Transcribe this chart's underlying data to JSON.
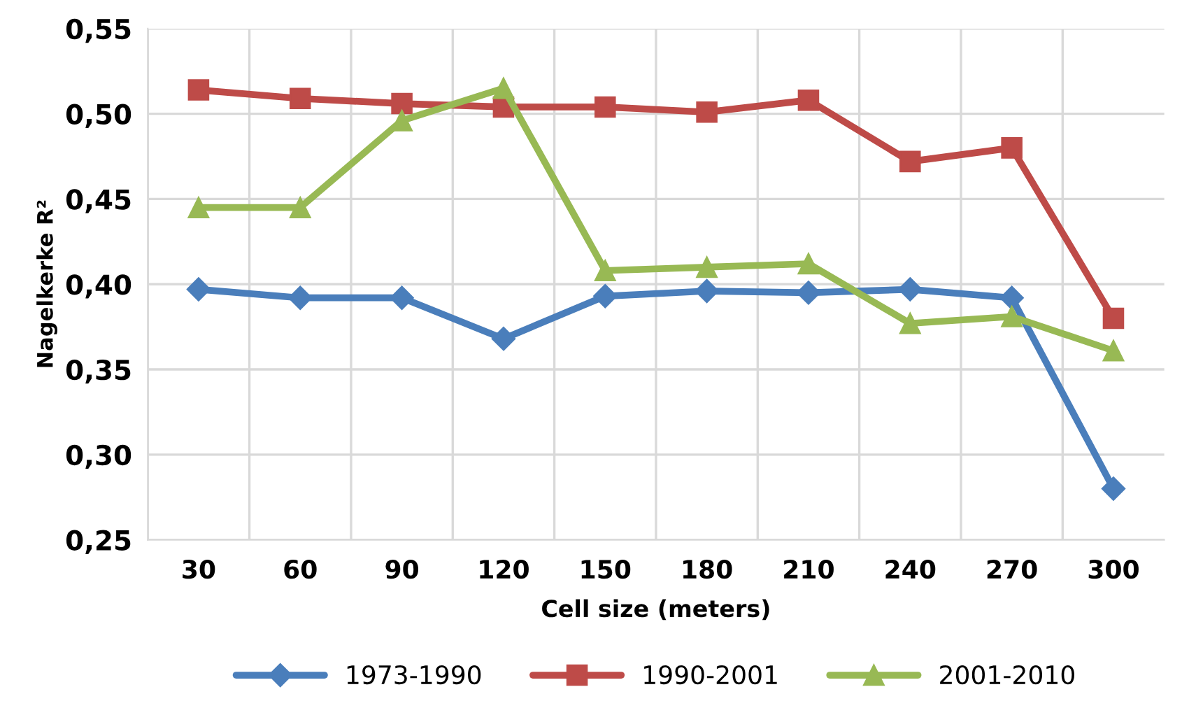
{
  "chart_data": {
    "type": "line",
    "xlabel": "Cell size (meters)",
    "ylabel": "Nagelkerke R²",
    "categories": [
      "30",
      "60",
      "90",
      "120",
      "150",
      "180",
      "210",
      "240",
      "270",
      "300"
    ],
    "series": [
      {
        "name": "1973-1990",
        "color": "#4a7ebb",
        "marker": "diamond",
        "values": [
          0.397,
          0.392,
          0.392,
          0.368,
          0.393,
          0.396,
          0.395,
          0.397,
          0.392,
          0.28
        ]
      },
      {
        "name": "1990-2001",
        "color": "#be4b48",
        "marker": "square",
        "values": [
          0.514,
          0.509,
          0.506,
          0.504,
          0.504,
          0.501,
          0.508,
          0.472,
          0.48,
          0.38
        ]
      },
      {
        "name": "2001-2010",
        "color": "#98b954",
        "marker": "triangle",
        "values": [
          0.445,
          0.445,
          0.496,
          0.515,
          0.408,
          0.41,
          0.412,
          0.377,
          0.381,
          0.361
        ]
      }
    ],
    "ylim": [
      0.25,
      0.55
    ],
    "yticks": [
      {
        "value": 0.25,
        "label": "0,25"
      },
      {
        "value": 0.3,
        "label": "0,30"
      },
      {
        "value": 0.35,
        "label": "0,35"
      },
      {
        "value": 0.4,
        "label": "0,40"
      },
      {
        "value": 0.45,
        "label": "0,45"
      },
      {
        "value": 0.5,
        "label": "0,50"
      },
      {
        "value": 0.55,
        "label": "0,55"
      }
    ],
    "grid": true,
    "legend": "bottom",
    "line_style": "solid"
  }
}
